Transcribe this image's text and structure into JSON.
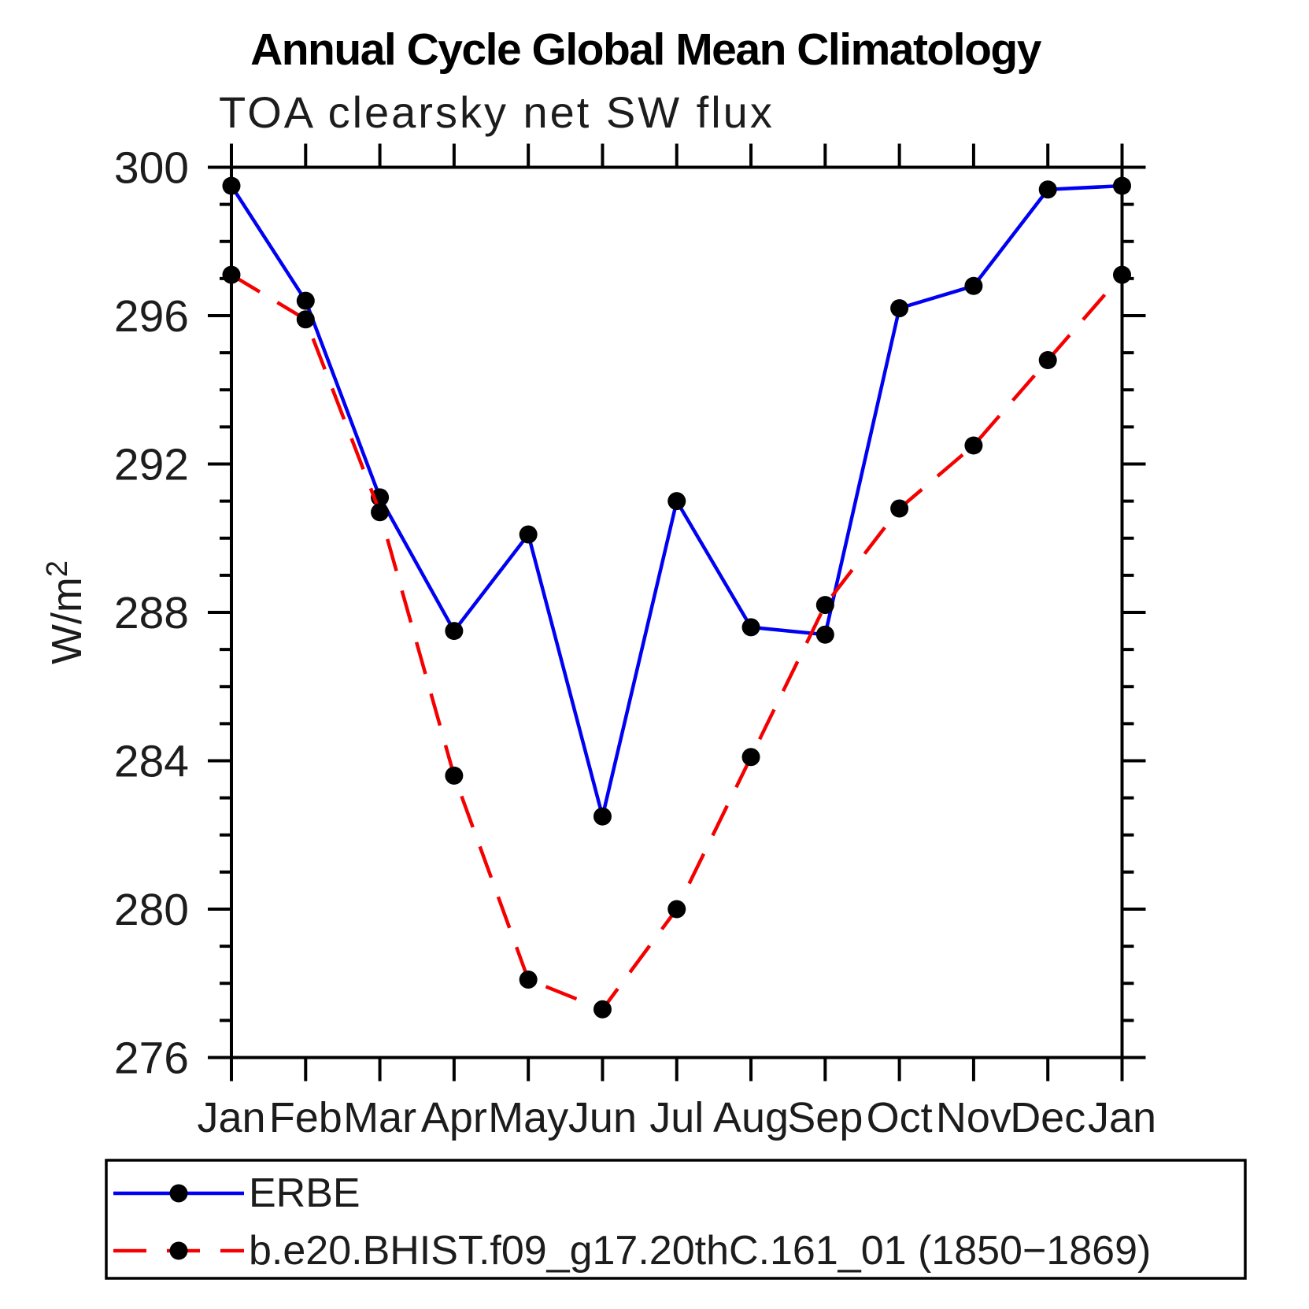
{
  "title": "Annual Cycle Global Mean Climatology",
  "subtitle": "TOA clearsky net SW flux",
  "ylabel": {
    "base": "W/m",
    "exp": "2"
  },
  "colors": {
    "erbe_line": "#0000f2",
    "model_line": "#f40000",
    "marker": "#000000",
    "axis": "#000000"
  },
  "chart_data": {
    "type": "line",
    "categories": [
      "Jan",
      "Feb",
      "Mar",
      "Apr",
      "May",
      "Jun",
      "Jul",
      "Aug",
      "Sep",
      "Oct",
      "Nov",
      "Dec",
      "Jan"
    ],
    "series": [
      {
        "name": "ERBE",
        "color": "#0000f2",
        "style": "solid",
        "marker": "filled-circle",
        "values": [
          299.5,
          296.4,
          291.1,
          287.5,
          290.1,
          282.5,
          291.0,
          287.6,
          287.4,
          296.2,
          296.8,
          299.4,
          299.5
        ]
      },
      {
        "name": "b.e20.BHIST.f09_g17.20thC.161_01 (1850−1869)",
        "color": "#f40000",
        "style": "dashed",
        "marker": "filled-circle",
        "values": [
          297.1,
          295.9,
          290.7,
          283.6,
          278.1,
          277.3,
          280.0,
          284.1,
          288.2,
          290.8,
          292.5,
          294.8,
          297.1
        ]
      }
    ],
    "title": "Annual Cycle Global Mean Climatology",
    "subtitle": "TOA clearsky net SW flux",
    "xlabel": "",
    "ylabel": "W/m2",
    "ylim": [
      276,
      300
    ],
    "ytick_major_step": 4,
    "ytick_minor_step": 1,
    "grid": false,
    "legend_position": "bottom-box"
  }
}
